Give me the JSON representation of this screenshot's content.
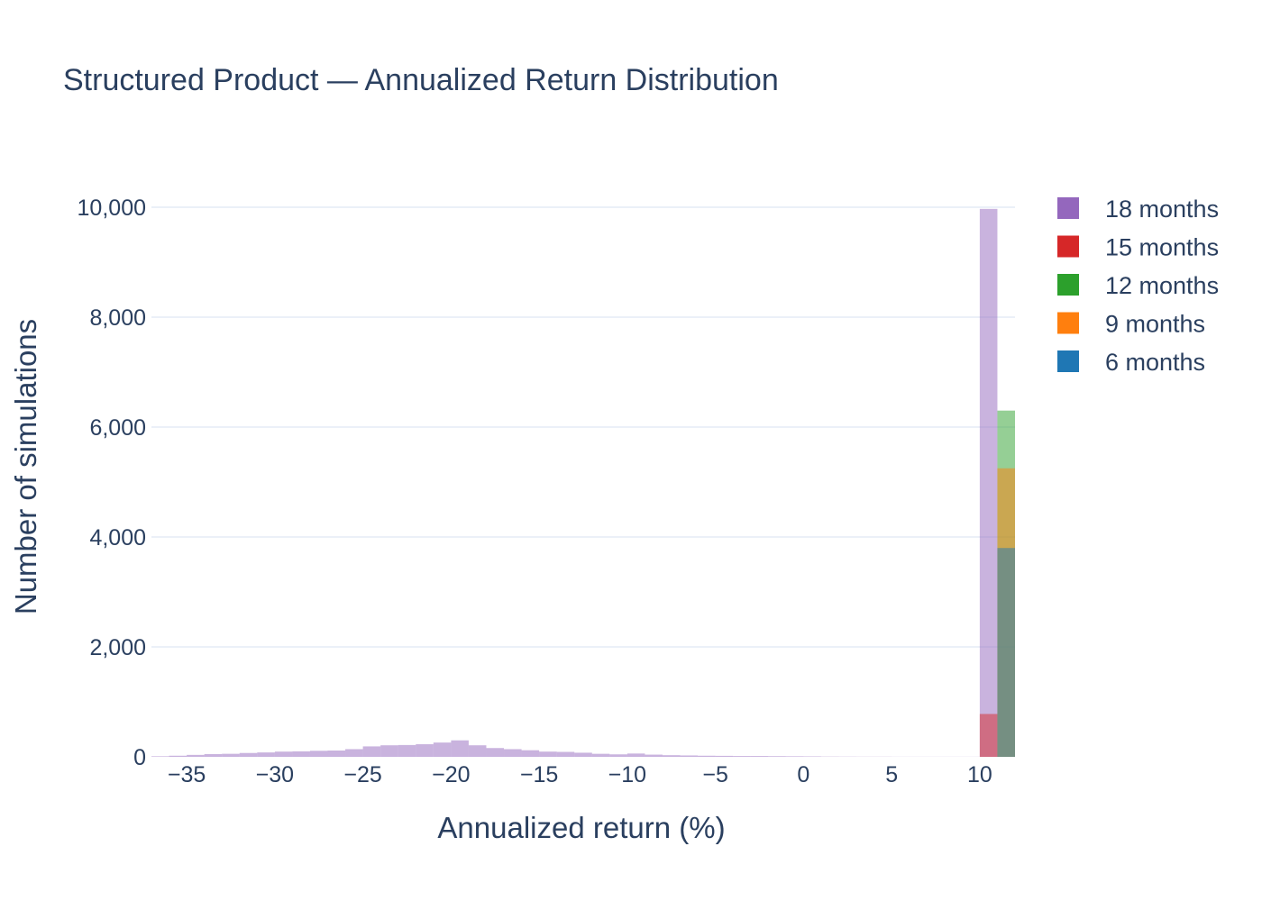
{
  "chart_data": {
    "type": "bar",
    "title": "Structured Product — Annualized Return Distribution",
    "xlabel": "Annualized return (%)",
    "ylabel": "Number of simulations",
    "xlim": [
      -37,
      12
    ],
    "ylim": [
      0,
      10000
    ],
    "xticks": [
      -35,
      -30,
      -25,
      -20,
      -15,
      -10,
      -5,
      0,
      5,
      10
    ],
    "xtick_labels": [
      "−35",
      "−30",
      "−25",
      "−20",
      "−15",
      "−10",
      "−5",
      "0",
      "5",
      "10"
    ],
    "yticks": [
      0,
      2000,
      4000,
      6000,
      8000,
      10000
    ],
    "ytick_labels": [
      "0",
      "2,000",
      "4,000",
      "6,000",
      "8,000",
      "10,000"
    ],
    "grid": true,
    "legend_position": "top-right",
    "barmode": "overlay",
    "series": [
      {
        "name": "18 months",
        "color": "#9467bd",
        "bin_width": 1,
        "bins": [
          [
            -37,
            10
          ],
          [
            -36,
            20
          ],
          [
            -35,
            35
          ],
          [
            -34,
            50
          ],
          [
            -33,
            55
          ],
          [
            -32,
            70
          ],
          [
            -31,
            80
          ],
          [
            -30,
            95
          ],
          [
            -29,
            100
          ],
          [
            -28,
            110
          ],
          [
            -27,
            115
          ],
          [
            -26,
            140
          ],
          [
            -25,
            190
          ],
          [
            -24,
            210
          ],
          [
            -23,
            215
          ],
          [
            -22,
            230
          ],
          [
            -21,
            260
          ],
          [
            -20,
            300
          ],
          [
            -19,
            210
          ],
          [
            -18,
            160
          ],
          [
            -17,
            140
          ],
          [
            -16,
            120
          ],
          [
            -15,
            95
          ],
          [
            -14,
            90
          ],
          [
            -13,
            75
          ],
          [
            -12,
            55
          ],
          [
            -11,
            45
          ],
          [
            -10,
            60
          ],
          [
            -9,
            40
          ],
          [
            -8,
            30
          ],
          [
            -7,
            25
          ],
          [
            -6,
            20
          ],
          [
            -5,
            18
          ],
          [
            -4,
            15
          ],
          [
            -3,
            15
          ],
          [
            -2,
            12
          ],
          [
            -1,
            10
          ],
          [
            0,
            8
          ],
          [
            1,
            5
          ],
          [
            2,
            4
          ],
          [
            3,
            3
          ],
          [
            4,
            3
          ],
          [
            5,
            2
          ],
          [
            6,
            2
          ],
          [
            7,
            2
          ],
          [
            8,
            2
          ],
          [
            9,
            2
          ],
          [
            10,
            9970
          ]
        ]
      },
      {
        "name": "15 months",
        "color": "#d62728",
        "bin_width": 1,
        "bins": [
          [
            10,
            780
          ]
        ]
      },
      {
        "name": "12 months",
        "color": "#2ca02c",
        "bin_width": 1,
        "bins": [
          [
            11,
            6300
          ]
        ]
      },
      {
        "name": "9 months",
        "color": "#ff7f0e",
        "bin_width": 1,
        "bins": [
          [
            11,
            5250
          ]
        ]
      },
      {
        "name": "6 months",
        "color": "#1f77b4",
        "bin_width": 1,
        "bins": [
          [
            11,
            3800
          ]
        ]
      }
    ]
  }
}
